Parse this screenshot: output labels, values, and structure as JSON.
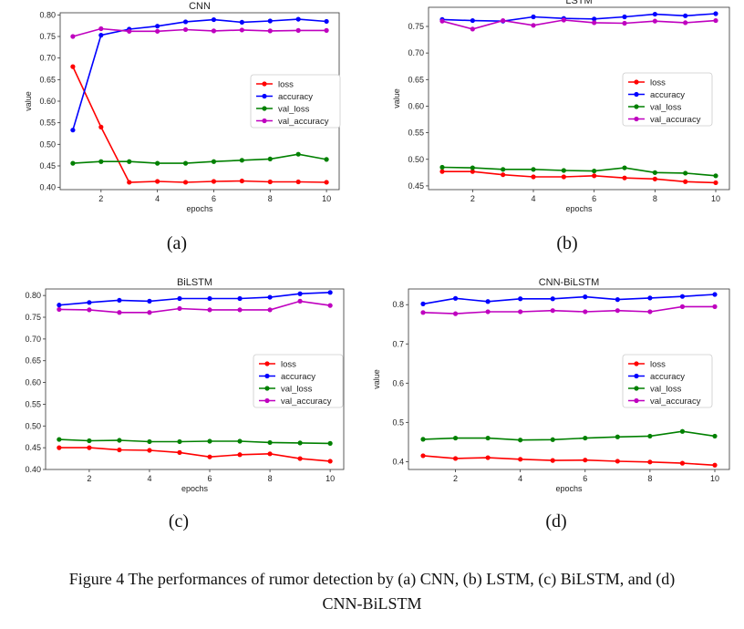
{
  "chart_data": [
    {
      "type": "line",
      "title": "CNN",
      "xlabel": "epochs",
      "ylabel": "value",
      "x": [
        1,
        2,
        3,
        4,
        5,
        6,
        7,
        8,
        9,
        10
      ],
      "xticks": [
        2,
        4,
        6,
        8,
        10
      ],
      "yticks": [
        0.4,
        0.45,
        0.5,
        0.55,
        0.6,
        0.65,
        0.7,
        0.75,
        0.8
      ],
      "ylim": [
        0.395,
        0.805
      ],
      "legend_position": "center-right",
      "grid": false,
      "series": [
        {
          "name": "loss",
          "color": "#ff0000",
          "values": [
            0.68,
            0.54,
            0.412,
            0.414,
            0.412,
            0.414,
            0.415,
            0.413,
            0.413,
            0.412
          ]
        },
        {
          "name": "accuracy",
          "color": "#0000ff",
          "values": [
            0.533,
            0.753,
            0.767,
            0.774,
            0.784,
            0.789,
            0.783,
            0.786,
            0.79,
            0.785
          ]
        },
        {
          "name": "val_loss",
          "color": "#008000",
          "values": [
            0.456,
            0.46,
            0.46,
            0.456,
            0.456,
            0.46,
            0.463,
            0.466,
            0.477,
            0.465
          ]
        },
        {
          "name": "val_accuracy",
          "color": "#bf00bf",
          "values": [
            0.75,
            0.768,
            0.762,
            0.762,
            0.766,
            0.763,
            0.765,
            0.763,
            0.764,
            0.764
          ]
        }
      ]
    },
    {
      "type": "line",
      "title": "LSTM",
      "xlabel": "epochs",
      "ylabel": "value",
      "x": [
        1,
        2,
        3,
        4,
        5,
        6,
        7,
        8,
        9,
        10
      ],
      "xticks": [
        2,
        4,
        6,
        8,
        10
      ],
      "yticks": [
        0.45,
        0.5,
        0.55,
        0.6,
        0.65,
        0.7,
        0.75
      ],
      "ylim": [
        0.443,
        0.786
      ],
      "legend_position": "center-right",
      "grid": false,
      "series": [
        {
          "name": "loss",
          "color": "#ff0000",
          "values": [
            0.477,
            0.477,
            0.471,
            0.467,
            0.467,
            0.469,
            0.465,
            0.463,
            0.458,
            0.456
          ]
        },
        {
          "name": "accuracy",
          "color": "#0000ff",
          "values": [
            0.763,
            0.761,
            0.76,
            0.768,
            0.765,
            0.764,
            0.768,
            0.773,
            0.77,
            0.774
          ]
        },
        {
          "name": "val_loss",
          "color": "#008000",
          "values": [
            0.485,
            0.484,
            0.481,
            0.481,
            0.479,
            0.478,
            0.484,
            0.475,
            0.474,
            0.469
          ]
        },
        {
          "name": "val_accuracy",
          "color": "#bf00bf",
          "values": [
            0.76,
            0.745,
            0.761,
            0.752,
            0.762,
            0.757,
            0.756,
            0.76,
            0.757,
            0.761
          ]
        }
      ]
    },
    {
      "type": "line",
      "title": "BiLSTM",
      "xlabel": "epochs",
      "ylabel": "",
      "x": [
        1,
        2,
        3,
        4,
        5,
        6,
        7,
        8,
        9,
        10
      ],
      "xticks": [
        2,
        4,
        6,
        8,
        10
      ],
      "yticks": [
        0.4,
        0.45,
        0.5,
        0.55,
        0.6,
        0.65,
        0.7,
        0.75,
        0.8
      ],
      "ylim": [
        0.4,
        0.815
      ],
      "legend_position": "center-right",
      "grid": false,
      "series": [
        {
          "name": "loss",
          "color": "#ff0000",
          "values": [
            0.45,
            0.45,
            0.445,
            0.444,
            0.439,
            0.429,
            0.434,
            0.436,
            0.425,
            0.419
          ]
        },
        {
          "name": "accuracy",
          "color": "#0000ff",
          "values": [
            0.778,
            0.784,
            0.789,
            0.787,
            0.793,
            0.793,
            0.793,
            0.796,
            0.804,
            0.807
          ]
        },
        {
          "name": "val_loss",
          "color": "#008000",
          "values": [
            0.469,
            0.466,
            0.467,
            0.464,
            0.464,
            0.465,
            0.465,
            0.462,
            0.461,
            0.46
          ]
        },
        {
          "name": "val_accuracy",
          "color": "#bf00bf",
          "values": [
            0.768,
            0.767,
            0.761,
            0.761,
            0.77,
            0.767,
            0.767,
            0.767,
            0.787,
            0.777
          ]
        }
      ]
    },
    {
      "type": "line",
      "title": "CNN-BiLSTM",
      "xlabel": "epochs",
      "ylabel": "value",
      "x": [
        1,
        2,
        3,
        4,
        5,
        6,
        7,
        8,
        9,
        10
      ],
      "xticks": [
        2,
        4,
        6,
        8,
        10
      ],
      "yticks": [
        0.4,
        0.5,
        0.6,
        0.7,
        0.8
      ],
      "ylim": [
        0.38,
        0.84
      ],
      "legend_position": "center-right",
      "grid": false,
      "series": [
        {
          "name": "loss",
          "color": "#ff0000",
          "values": [
            0.415,
            0.408,
            0.41,
            0.406,
            0.403,
            0.404,
            0.401,
            0.399,
            0.396,
            0.391
          ]
        },
        {
          "name": "accuracy",
          "color": "#0000ff",
          "values": [
            0.802,
            0.816,
            0.808,
            0.815,
            0.815,
            0.82,
            0.813,
            0.817,
            0.821,
            0.826
          ]
        },
        {
          "name": "val_loss",
          "color": "#008000",
          "values": [
            0.457,
            0.46,
            0.46,
            0.455,
            0.456,
            0.46,
            0.463,
            0.465,
            0.477,
            0.465
          ]
        },
        {
          "name": "val_accuracy",
          "color": "#bf00bf",
          "values": [
            0.78,
            0.777,
            0.782,
            0.782,
            0.785,
            0.782,
            0.785,
            0.782,
            0.795,
            0.795
          ]
        }
      ]
    }
  ],
  "subfigure_labels": [
    "(a)",
    "(b)",
    "(c)",
    "(d)"
  ],
  "caption": {
    "line1": "Figure 4 The performances of rumor detection by (a) CNN, (b) LSTM, (c) BiLSTM, and (d)",
    "line2": "CNN-BiLSTM"
  }
}
